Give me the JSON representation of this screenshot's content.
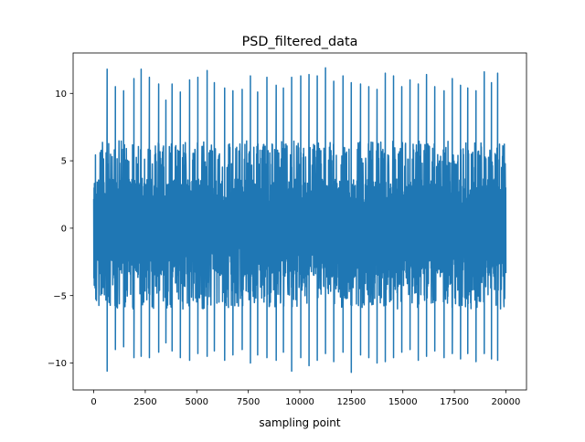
{
  "chart_data": {
    "type": "line",
    "title": "PSD_filtered_data",
    "xlabel": "sampling point",
    "ylabel": "",
    "xlim": [
      -1000,
      21000
    ],
    "ylim": [
      -12,
      13
    ],
    "xticks": [
      0,
      2500,
      5000,
      7500,
      10000,
      12500,
      15000,
      17500,
      20000
    ],
    "xtick_labels": [
      "0",
      "2500",
      "5000",
      "7500",
      "10000",
      "12500",
      "15000",
      "17500",
      "20000"
    ],
    "yticks": [
      -10,
      -5,
      0,
      5,
      10
    ],
    "ytick_labels": [
      "−10",
      "−5",
      "0",
      "5",
      "10"
    ],
    "grid": false,
    "series": [
      {
        "name": "",
        "color": "#1f77b4",
        "x_range": [
          0,
          20000
        ],
        "peak_positions": [
          650,
          1050,
          1450,
          1950,
          2300,
          2700,
          3150,
          3500,
          3800,
          4200,
          4650,
          5050,
          5500,
          5850,
          6350,
          6750,
          7200,
          7600,
          7950,
          8400,
          8850,
          9200,
          9600,
          10050,
          10450,
          10850,
          11250,
          11650,
          12100,
          12500,
          12950,
          13350,
          13750,
          14150,
          14550,
          14950,
          15350,
          15750,
          16150,
          16550,
          17000,
          17400,
          17800,
          18150,
          18550,
          18950,
          19300,
          19600
        ],
        "peak_values": [
          11.8,
          10.5,
          10.2,
          11.1,
          11.8,
          11.2,
          10.7,
          9.5,
          10.7,
          10.1,
          11.0,
          11.2,
          11.7,
          10.8,
          10.4,
          10.2,
          10.3,
          11.3,
          10.1,
          11.2,
          10.6,
          10.4,
          11.2,
          11.3,
          11.4,
          11.3,
          11.9,
          10.9,
          11.3,
          10.8,
          10.7,
          10.5,
          10.3,
          11.5,
          11.3,
          10.5,
          11.0,
          10.7,
          11.4,
          10.5,
          10.2,
          11.1,
          10.6,
          10.4,
          10.2,
          11.6,
          10.8,
          11.5
        ],
        "trough_values": [
          -10.6,
          -9.0,
          -8.8,
          -9.6,
          -9.5,
          -9.6,
          -9.2,
          -8.5,
          -9.1,
          -9.6,
          -9.8,
          -9.3,
          -9.5,
          -9.1,
          -9.8,
          -9.4,
          -9.0,
          -10.0,
          -9.4,
          -9.6,
          -9.8,
          -9.2,
          -10.6,
          -9.6,
          -10.2,
          -9.8,
          -9.3,
          -9.9,
          -9.2,
          -10.7,
          -9.4,
          -9.6,
          -10.0,
          -9.9,
          -9.6,
          -9.2,
          -9.0,
          -9.8,
          -9.5,
          -9.1,
          -9.6,
          -9.3,
          -9.7,
          -9.3,
          -9.9,
          -9.3,
          -9.7,
          -9.8
        ],
        "band_upper_range": [
          4.5,
          6.5
        ],
        "band_lower_range": [
          -6.0,
          -4.0
        ],
        "core_range": [
          -2.5,
          3.5
        ]
      }
    ]
  }
}
